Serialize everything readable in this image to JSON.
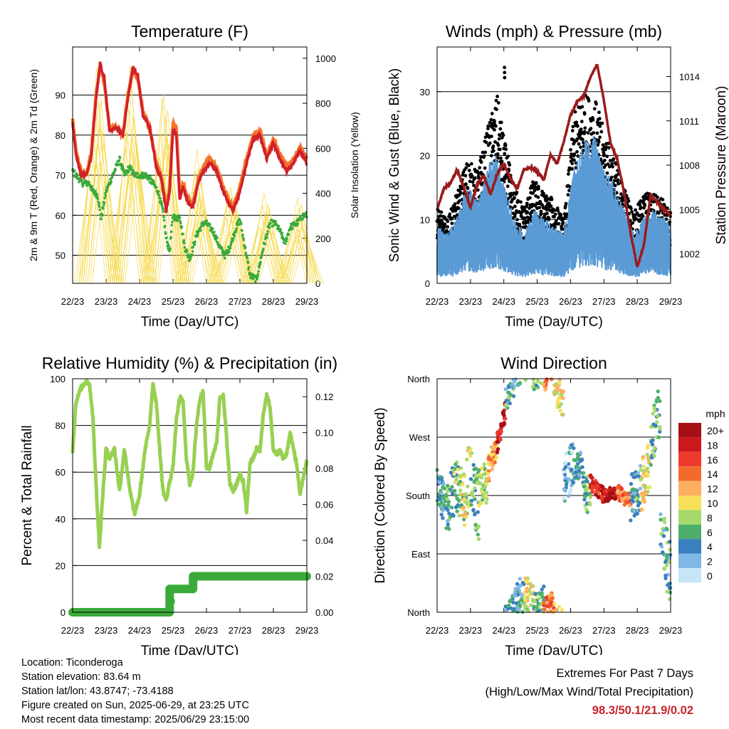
{
  "colors": {
    "temp_2m": "#d0202a",
    "temp_9m": "#f4742a",
    "dewpoint": "#3aaa3a",
    "solar": "#f5d94a",
    "wind": "#5b9bd5",
    "gust": "#000000",
    "pressure": "#9b1b1b",
    "rh": "#98d052",
    "precip": "#3aaa3a",
    "extremes": "#c8232c"
  },
  "legend_speed": {
    "title": "mph",
    "labels": [
      "20+",
      "18",
      "16",
      "14",
      "12",
      "10",
      "8",
      "6",
      "4",
      "2",
      "0"
    ],
    "colors": [
      "#a50f15",
      "#cb181d",
      "#ef3b2c",
      "#f26b2b",
      "#fdae61",
      "#f6e05a",
      "#a6d96a",
      "#4daf6b",
      "#3a7fc0",
      "#7fb8e6",
      "#c6e6f7"
    ]
  },
  "info": {
    "location": "Location: Ticonderoga",
    "elevation": "Station elevation: 83.64 m",
    "latlon": "Station lat/lon: 43.8747; -73.4188",
    "created": "Figure created on Sun, 2025-06-29, at 23:25 UTC",
    "timestamp": "Most recent data timestamp: 2025/06/29 23:15:00",
    "extremes_title": "Extremes For Past 7 Days",
    "extremes_sub": "(High/Low/Max Wind/Total Precipitation)",
    "extremes_values": "98.3/50.1/21.9/0.02"
  },
  "chart_data": [
    {
      "id": "temperature",
      "type": "line",
      "title": "Temperature (F)",
      "xlabel": "Time (Day/UTC)",
      "ylabel": "2m & 9m T (Red, Orange) & 2m Td (Green)",
      "ylabel_right": "Solar Insolation (Yellow)",
      "categories": [
        "22/23",
        "23/23",
        "24/23",
        "25/23",
        "26/23",
        "27/23",
        "28/23",
        "29/23"
      ],
      "xlim": [
        0,
        7
      ],
      "ylim": [
        43,
        102
      ],
      "yticks": [
        50,
        60,
        70,
        80,
        90
      ],
      "ylim_right": [
        0,
        1050
      ],
      "yticks_right": [
        0,
        200,
        400,
        600,
        800,
        1000
      ],
      "series": [
        {
          "key": "td",
          "axis": "left",
          "style": "dots",
          "x": [
            0,
            0.1,
            0.3,
            0.5,
            0.6,
            0.75,
            0.85,
            1.0,
            1.2,
            1.4,
            1.55,
            1.7,
            1.85,
            2.0,
            2.2,
            2.4,
            2.55,
            2.7,
            2.8,
            2.9,
            3.0,
            3.1,
            3.2,
            3.35,
            3.5,
            3.7,
            3.9,
            4.0,
            4.2,
            4.4,
            4.55,
            4.7,
            4.85,
            5.0,
            5.15,
            5.3,
            5.5,
            5.7,
            5.9,
            6.05,
            6.2,
            6.35,
            6.5,
            6.7,
            6.9,
            7.0
          ],
          "y": [
            71,
            70,
            68,
            68,
            66,
            65,
            59,
            66,
            70,
            74,
            70,
            72,
            70,
            70,
            70,
            68,
            66,
            61,
            54,
            51,
            60,
            59,
            60,
            52,
            49,
            55,
            58,
            58,
            56,
            52,
            50,
            52,
            56,
            59,
            52,
            45,
            44,
            52,
            58,
            58,
            56,
            53,
            57,
            58,
            60,
            60
          ]
        },
        {
          "key": "t9",
          "axis": "left",
          "style": "line",
          "x": [
            0,
            0.1,
            0.25,
            0.4,
            0.55,
            0.7,
            0.82,
            0.95,
            1.1,
            1.3,
            1.5,
            1.65,
            1.8,
            1.95,
            2.1,
            2.3,
            2.5,
            2.65,
            2.8,
            2.9,
            3.0,
            3.1,
            3.2,
            3.3,
            3.45,
            3.6,
            3.75,
            3.9,
            4.1,
            4.3,
            4.5,
            4.65,
            4.8,
            5.0,
            5.2,
            5.4,
            5.6,
            5.8,
            6.0,
            6.2,
            6.4,
            6.6,
            6.8,
            7.0
          ],
          "y": [
            84,
            76,
            71,
            70,
            75,
            90,
            97,
            93,
            82,
            82,
            80,
            90,
            96,
            94,
            86,
            82,
            73,
            70,
            62,
            67,
            83,
            82,
            65,
            68,
            64,
            63,
            69,
            72,
            74,
            72,
            67,
            64,
            62,
            67,
            74,
            80,
            81,
            75,
            79,
            75,
            72,
            74,
            77,
            74
          ]
        },
        {
          "key": "t2",
          "axis": "left",
          "style": "line",
          "x": [
            0,
            0.1,
            0.25,
            0.4,
            0.55,
            0.7,
            0.82,
            0.95,
            1.1,
            1.3,
            1.5,
            1.65,
            1.8,
            1.95,
            2.1,
            2.3,
            2.5,
            2.65,
            2.8,
            2.9,
            3.0,
            3.1,
            3.2,
            3.3,
            3.45,
            3.6,
            3.75,
            3.9,
            4.1,
            4.3,
            4.5,
            4.65,
            4.8,
            5.0,
            5.2,
            5.4,
            5.6,
            5.8,
            6.0,
            6.2,
            6.4,
            6.6,
            6.8,
            7.0
          ],
          "y": [
            83,
            75,
            70,
            70,
            74,
            89,
            98,
            94,
            81,
            82,
            80,
            89,
            97,
            95,
            85,
            82,
            72,
            69,
            61,
            66,
            81,
            80,
            64,
            67,
            63,
            62,
            68,
            71,
            73,
            71,
            66,
            63,
            61,
            66,
            73,
            79,
            80,
            74,
            78,
            74,
            71,
            73,
            76,
            73
          ]
        }
      ],
      "solar_peaks": [
        {
          "x": 0.72,
          "value": 960
        },
        {
          "x": 0.85,
          "value": 850
        },
        {
          "x": 1.72,
          "value": 1000
        },
        {
          "x": 1.84,
          "value": 820
        },
        {
          "x": 2.72,
          "value": 960
        },
        {
          "x": 2.84,
          "value": 800
        },
        {
          "x": 3.72,
          "value": 610
        },
        {
          "x": 3.84,
          "value": 480
        },
        {
          "x": 4.72,
          "value": 500
        },
        {
          "x": 4.84,
          "value": 420
        },
        {
          "x": 5.72,
          "value": 420
        },
        {
          "x": 5.84,
          "value": 380
        },
        {
          "x": 6.72,
          "value": 400
        },
        {
          "x": 6.84,
          "value": 350
        }
      ]
    },
    {
      "id": "winds",
      "type": "scatter",
      "title": "Winds (mph) & Pressure (mb)",
      "xlabel": "Time (Day/UTC)",
      "ylabel": "Sonic Wind & Gust (Blue, Black)",
      "ylabel_right": "Station Pressure (Maroon)",
      "categories": [
        "22/23",
        "23/23",
        "24/23",
        "25/23",
        "26/23",
        "27/23",
        "28/23",
        "29/23"
      ],
      "xlim": [
        0,
        7
      ],
      "ylim": [
        0,
        37
      ],
      "yticks": [
        0,
        10,
        20,
        30
      ],
      "ylim_right": [
        1000,
        1016
      ],
      "yticks_right": [
        1002,
        1005,
        1008,
        1011,
        1014
      ],
      "wind_envelope": {
        "x": [
          0,
          0.3,
          0.6,
          0.9,
          1.2,
          1.5,
          1.8,
          2.0,
          2.3,
          2.6,
          2.9,
          3.2,
          3.5,
          3.8,
          4.1,
          4.4,
          4.7,
          5.0,
          5.3,
          5.6,
          5.9,
          6.2,
          6.5,
          6.8,
          7.0
        ],
        "y": [
          7,
          6,
          8,
          12,
          10,
          14,
          16,
          12,
          8,
          6,
          9,
          8,
          7,
          6,
          14,
          17,
          18,
          14,
          12,
          9,
          6,
          8,
          9,
          8,
          7
        ]
      },
      "gust_envelope": {
        "x": [
          0,
          0.3,
          0.6,
          0.9,
          1.2,
          1.5,
          1.8,
          2.0,
          2.3,
          2.6,
          2.9,
          3.2,
          3.5,
          3.8,
          4.1,
          4.4,
          4.7,
          5.0,
          5.3,
          5.6,
          5.9,
          6.2,
          6.5,
          6.8,
          7.0
        ],
        "y": [
          11,
          9,
          13,
          18,
          16,
          22,
          27,
          21,
          14,
          11,
          15,
          13,
          12,
          9,
          24,
          27,
          27,
          22,
          18,
          14,
          10,
          13,
          13,
          12,
          10
        ]
      },
      "gust_max": {
        "x": 2.02,
        "y": 33.8
      },
      "pressure": {
        "x": [
          0,
          0.2,
          0.4,
          0.6,
          0.8,
          1.0,
          1.2,
          1.4,
          1.6,
          1.8,
          2.0,
          2.2,
          2.4,
          2.6,
          2.8,
          3.0,
          3.2,
          3.4,
          3.6,
          3.8,
          4.0,
          4.2,
          4.4,
          4.6,
          4.8,
          5.0,
          5.2,
          5.4,
          5.6,
          5.8,
          6.0,
          6.2,
          6.4,
          6.6,
          6.8,
          7.0
        ],
        "y": [
          1005.0,
          1006.4,
          1006.8,
          1007.7,
          1006.5,
          1005.1,
          1006.7,
          1007.3,
          1006.0,
          1007.4,
          1008.1,
          1007.1,
          1006.4,
          1007.7,
          1007.8,
          1007.6,
          1007.0,
          1008.7,
          1008.1,
          1009.6,
          1011.4,
          1012.3,
          1012.7,
          1014.0,
          1014.8,
          1012.4,
          1009.5,
          1008.4,
          1006.2,
          1003.4,
          1001.1,
          1002.6,
          1006.0,
          1005.5,
          1005.0,
          1004.6
        ]
      }
    },
    {
      "id": "humidity",
      "type": "line",
      "title": "Relative Humidity (%) & Precipitation (in)",
      "xlabel": "Time (Day/UTC)",
      "ylabel": "Percent & Total Rainfall",
      "categories": [
        "22/23",
        "23/23",
        "24/23",
        "25/23",
        "26/23",
        "27/23",
        "28/23",
        "29/23"
      ],
      "xlim": [
        0,
        7
      ],
      "ylim": [
        0,
        100
      ],
      "yticks": [
        0,
        20,
        40,
        60,
        80,
        100
      ],
      "ylim_right": [
        0,
        0.13
      ],
      "yticks_right": [
        "0.00",
        "0.02",
        "0.04",
        "0.06",
        "0.08",
        "0.10",
        "0.12"
      ],
      "rh": {
        "x": [
          0,
          0.1,
          0.25,
          0.4,
          0.5,
          0.6,
          0.7,
          0.8,
          0.9,
          1.0,
          1.1,
          1.25,
          1.4,
          1.55,
          1.7,
          1.85,
          2.0,
          2.15,
          2.3,
          2.4,
          2.5,
          2.6,
          2.7,
          2.8,
          2.9,
          3.0,
          3.1,
          3.2,
          3.3,
          3.4,
          3.5,
          3.6,
          3.7,
          3.8,
          3.9,
          4.0,
          4.1,
          4.2,
          4.3,
          4.4,
          4.5,
          4.6,
          4.7,
          4.8,
          4.9,
          5.0,
          5.1,
          5.2,
          5.3,
          5.4,
          5.5,
          5.6,
          5.7,
          5.8,
          5.9,
          6.0,
          6.1,
          6.2,
          6.3,
          6.4,
          6.5,
          6.6,
          6.7,
          6.8,
          6.9,
          7.0
        ],
        "y": [
          69,
          90,
          96,
          99,
          98,
          85,
          55,
          28,
          50,
          70,
          66,
          70,
          52,
          70,
          53,
          42,
          50,
          68,
          80,
          98,
          90,
          70,
          52,
          48,
          56,
          62,
          82,
          92,
          90,
          66,
          55,
          60,
          80,
          91,
          95,
          62,
          62,
          68,
          72,
          92,
          93,
          75,
          55,
          52,
          55,
          59,
          56,
          43,
          64,
          66,
          70,
          69,
          85,
          93,
          88,
          69,
          68,
          69,
          66,
          68,
          77,
          70,
          63,
          50,
          58,
          65
        ]
      },
      "precip": {
        "x": [
          0,
          2.9,
          2.9,
          3.6,
          3.6,
          7.0
        ],
        "y": [
          0.0,
          0.0,
          0.013,
          0.013,
          0.02,
          0.02
        ]
      }
    },
    {
      "id": "direction",
      "type": "scatter",
      "title": "Wind Direction",
      "xlabel": "Time (Day/UTC)",
      "ylabel": "Direction (Colored By Speed)",
      "categories": [
        "22/23",
        "23/23",
        "24/23",
        "25/23",
        "26/23",
        "27/23",
        "28/23",
        "29/23"
      ],
      "xlim": [
        0,
        7
      ],
      "ylim": [
        0,
        360
      ],
      "yticks": [
        "North",
        "East",
        "South",
        "West",
        "North"
      ],
      "segments": [
        {
          "x0": 0.0,
          "x1": 0.25,
          "d0": 200,
          "d1": 160,
          "spread": 30,
          "speed": 4
        },
        {
          "x0": 0.25,
          "x1": 0.5,
          "d0": 150,
          "d1": 190,
          "spread": 40,
          "speed": 5
        },
        {
          "x0": 0.5,
          "x1": 0.75,
          "d0": 200,
          "d1": 180,
          "spread": 40,
          "speed": 7
        },
        {
          "x0": 0.75,
          "x1": 1.0,
          "d0": 170,
          "d1": 220,
          "spread": 50,
          "speed": 9
        },
        {
          "x0": 1.0,
          "x1": 1.25,
          "d0": 210,
          "d1": 160,
          "spread": 50,
          "speed": 6
        },
        {
          "x0": 1.25,
          "x1": 1.5,
          "d0": 180,
          "d1": 200,
          "spread": 40,
          "speed": 8
        },
        {
          "x0": 1.5,
          "x1": 1.8,
          "d0": 215,
          "d1": 260,
          "spread": 20,
          "speed": 12
        },
        {
          "x0": 1.8,
          "x1": 2.05,
          "d0": 260,
          "d1": 310,
          "spread": 15,
          "speed": 18
        },
        {
          "x0": 2.05,
          "x1": 2.3,
          "d0": 340,
          "d1": 360,
          "spread": 30,
          "speed": 5
        },
        {
          "x0": 2.3,
          "x1": 2.6,
          "d0": 10,
          "d1": 30,
          "spread": 30,
          "speed": 4
        },
        {
          "x0": 2.6,
          "x1": 2.9,
          "d0": 30,
          "d1": 10,
          "spread": 30,
          "speed": 9
        },
        {
          "x0": 2.9,
          "x1": 3.2,
          "d0": 5,
          "d1": 20,
          "spread": 25,
          "speed": 6
        },
        {
          "x0": 3.2,
          "x1": 3.5,
          "d0": 0,
          "d1": 15,
          "spread": 20,
          "speed": 14
        },
        {
          "x0": 3.5,
          "x1": 3.8,
          "d0": 350,
          "d1": 330,
          "spread": 30,
          "speed": 10
        },
        {
          "x0": 3.8,
          "x1": 4.1,
          "d0": 200,
          "d1": 240,
          "spread": 40,
          "speed": 3
        },
        {
          "x0": 4.1,
          "x1": 4.35,
          "d0": 220,
          "d1": 230,
          "spread": 20,
          "speed": 4
        },
        {
          "x0": 4.35,
          "x1": 4.6,
          "d0": 200,
          "d1": 170,
          "spread": 30,
          "speed": 6
        },
        {
          "x0": 4.6,
          "x1": 5.0,
          "d0": 200,
          "d1": 180,
          "spread": 12,
          "speed": 17
        },
        {
          "x0": 5.0,
          "x1": 5.4,
          "d0": 180,
          "d1": 185,
          "spread": 10,
          "speed": 19
        },
        {
          "x0": 5.4,
          "x1": 5.8,
          "d0": 185,
          "d1": 170,
          "spread": 12,
          "speed": 14
        },
        {
          "x0": 5.8,
          "x1": 6.1,
          "d0": 170,
          "d1": 200,
          "spread": 40,
          "speed": 5
        },
        {
          "x0": 6.1,
          "x1": 6.4,
          "d0": 190,
          "d1": 230,
          "spread": 40,
          "speed": 10
        },
        {
          "x0": 6.4,
          "x1": 6.7,
          "d0": 260,
          "d1": 320,
          "spread": 40,
          "speed": 6
        },
        {
          "x0": 6.7,
          "x1": 7.0,
          "d0": 120,
          "d1": 60,
          "spread": 50,
          "speed": 5
        }
      ]
    }
  ]
}
